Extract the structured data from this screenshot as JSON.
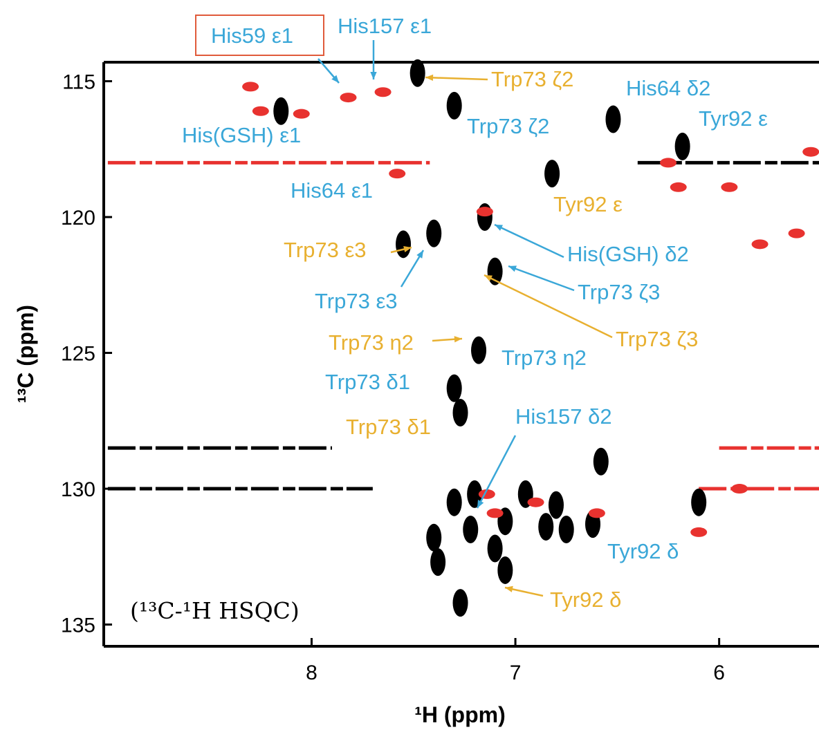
{
  "chart_data": {
    "type": "scatter",
    "xlabel": "¹H (ppm)",
    "ylabel": "¹³C (ppm)",
    "xlim": [
      9.02,
      5.51
    ],
    "ylim": [
      114.3,
      135.8
    ],
    "x_reversed": true,
    "y_reversed": true,
    "xticks": [
      8,
      7,
      6
    ],
    "yticks": [
      115,
      120,
      125,
      130,
      135
    ],
    "series": [
      {
        "color": "#000000",
        "x": [
          7.48,
          7.3,
          6.52,
          6.18,
          6.82,
          7.4,
          7.55,
          7.15,
          7.1,
          7.18,
          7.3,
          7.27,
          6.58,
          7.3,
          7.2,
          7.4,
          7.22,
          7.05,
          6.95,
          6.85,
          6.8,
          6.62,
          6.75,
          7.1,
          7.05,
          7.27,
          7.38,
          6.1,
          8.15
        ],
        "y": [
          114.7,
          115.9,
          116.4,
          117.4,
          118.4,
          120.6,
          121.0,
          120.0,
          122.0,
          124.9,
          126.3,
          127.2,
          129.0,
          130.5,
          130.2,
          131.8,
          131.5,
          131.2,
          130.2,
          131.4,
          130.6,
          131.3,
          131.5,
          132.2,
          133.0,
          134.2,
          132.7,
          130.5,
          116.1
        ]
      },
      {
        "color": "#e8322f",
        "x": [
          7.82,
          7.65,
          8.25,
          7.58,
          7.15,
          6.25,
          6.2,
          5.95,
          5.8,
          5.62,
          7.14,
          6.9,
          6.1,
          7.1,
          6.6,
          5.9,
          5.55,
          8.3,
          8.05
        ],
        "y": [
          115.6,
          115.4,
          116.1,
          118.4,
          119.8,
          118.0,
          118.9,
          118.9,
          121.0,
          120.6,
          130.2,
          130.5,
          131.6,
          130.9,
          130.9,
          130.0,
          117.6,
          115.2,
          116.2
        ]
      }
    ],
    "streaks": [
      {
        "color": "#e8322f",
        "y": 118.0,
        "x": [
          9.0,
          7.42
        ]
      },
      {
        "color": "#000000",
        "y": 118.0,
        "x": [
          6.4,
          5.51
        ]
      },
      {
        "color": "#000000",
        "y": 128.5,
        "x": [
          9.0,
          7.9
        ]
      },
      {
        "color": "#000000",
        "y": 130.0,
        "x": [
          9.0,
          7.7
        ]
      },
      {
        "color": "#e8322f",
        "y": 128.5,
        "x": [
          6.0,
          5.51
        ]
      },
      {
        "color": "#e8322f",
        "y": 130.0,
        "x": [
          6.1,
          5.51
        ]
      }
    ],
    "annotations": [
      {
        "text": "His59 ε1",
        "color": "#3aa7d8"
      },
      {
        "text": "His157 ε1",
        "color": "#3aa7d8"
      },
      {
        "text": "Trp73 ζ2",
        "color": "#e8b030"
      },
      {
        "text": "His64 δ2",
        "color": "#3aa7d8"
      },
      {
        "text": "Tyr92 ε",
        "color": "#3aa7d8"
      },
      {
        "text": "Trp73 ζ2",
        "color": "#3aa7d8"
      },
      {
        "text": "His(GSH) ε1",
        "color": "#3aa7d8"
      },
      {
        "text": "His64 ε1",
        "color": "#3aa7d8"
      },
      {
        "text": "Tyr92 ε",
        "color": "#e8b030"
      },
      {
        "text": "Trp73 ε3",
        "color": "#e8b030"
      },
      {
        "text": "His(GSH) δ2",
        "color": "#3aa7d8"
      },
      {
        "text": "Trp73 ζ3",
        "color": "#3aa7d8"
      },
      {
        "text": "Trp73 ε3",
        "color": "#3aa7d8"
      },
      {
        "text": "Trp73 ζ3",
        "color": "#e8b030"
      },
      {
        "text": "Trp73 η2",
        "color": "#e8b030"
      },
      {
        "text": "Trp73 η2",
        "color": "#3aa7d8"
      },
      {
        "text": "Trp73 δ1",
        "color": "#3aa7d8"
      },
      {
        "text": "His157 δ2",
        "color": "#3aa7d8"
      },
      {
        "text": "Trp73 δ1",
        "color": "#e8b030"
      },
      {
        "text": "Tyr92 δ",
        "color": "#3aa7d8"
      },
      {
        "text": "Tyr92 δ",
        "color": "#e8b030"
      }
    ],
    "method_label": "(¹³C-¹H HSQC)"
  }
}
